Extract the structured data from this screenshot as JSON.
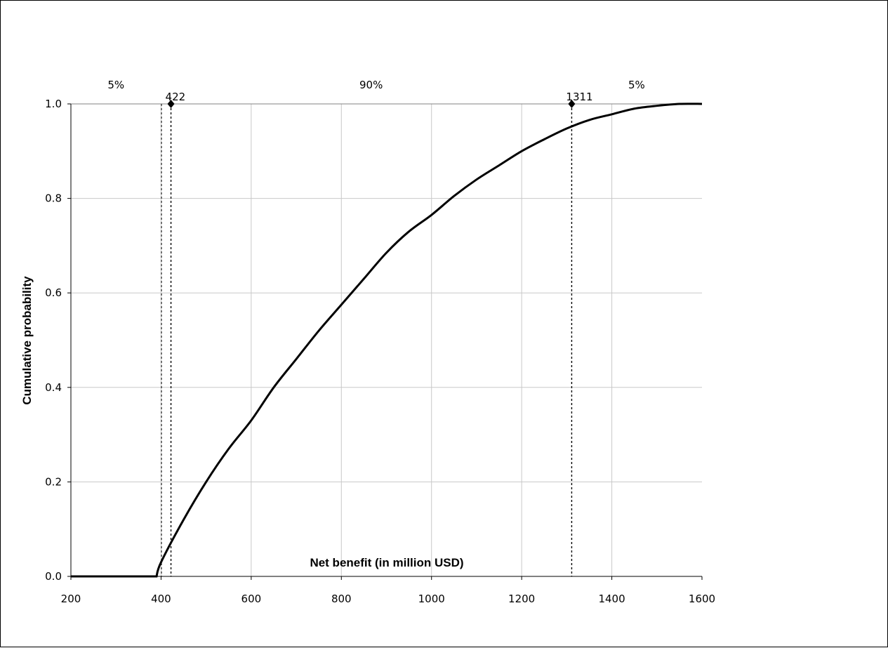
{
  "chart_data": {
    "type": "line",
    "title": "",
    "xlabel": "Net benefit (in million USD)",
    "ylabel": "Cumulative probability",
    "xlim": [
      200,
      1600
    ],
    "ylim": [
      0,
      1.0
    ],
    "x_ticks": [
      "200",
      "400",
      "600",
      "800",
      "1000",
      "1200",
      "1400",
      "1600"
    ],
    "y_ticks": [
      "0.0",
      "0.2",
      "0.4",
      "0.6",
      "0.8",
      "1.0"
    ],
    "grid": true,
    "legend": "none",
    "series": [
      {
        "x": [
          200,
          390,
          400,
          450,
          500,
          550,
          600,
          650,
          700,
          750,
          800,
          850,
          900,
          950,
          1000,
          1050,
          1100,
          1150,
          1200,
          1250,
          1300,
          1350,
          1400,
          1450,
          1500,
          1550,
          1600
        ],
        "y": [
          0.0,
          0.0,
          0.03,
          0.12,
          0.2,
          0.27,
          0.33,
          0.4,
          0.46,
          0.52,
          0.575,
          0.63,
          0.685,
          0.73,
          0.765,
          0.805,
          0.84,
          0.87,
          0.9,
          0.925,
          0.948,
          0.966,
          0.978,
          0.99,
          0.996,
          1.0,
          1.0
        ]
      }
    ],
    "percentiles": [
      {
        "value": 422,
        "label": "422"
      },
      {
        "value": 1311,
        "label": "1311"
      }
    ],
    "regions": [
      {
        "label": "5%",
        "x": 300
      },
      {
        "label": "90%",
        "x": 866
      },
      {
        "label": "5%",
        "x": 1455
      }
    ]
  }
}
